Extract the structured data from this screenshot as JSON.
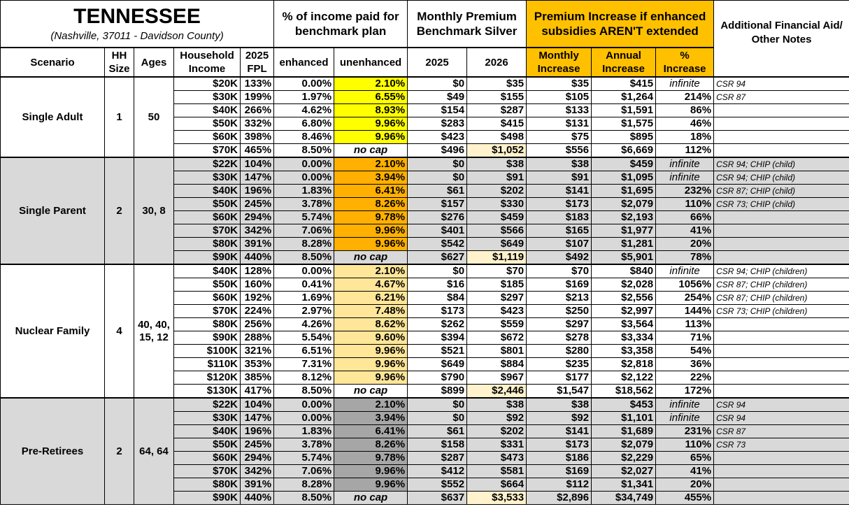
{
  "header": {
    "title": "TENNESSEE",
    "subtitle": "(Nashville, 37011 - Davidson County)",
    "pct_income": "% of income paid for benchmark plan",
    "monthly_premium": "Monthly Premium Benchmark Silver",
    "premium_increase": "Premium Increase if enhanced subsidies AREN'T extended",
    "notes": "Additional Financial Aid/ Other Notes",
    "columns": [
      "Scenario",
      "HH Size",
      "Ages",
      "Household Income",
      "2025 FPL",
      "enhanced",
      "unenhanced",
      "2025",
      "2026",
      "Monthly Increase",
      "Annual Increase",
      "% Increase"
    ]
  },
  "colors": {
    "accent_orange": "#ffc000",
    "single_adult": "#ffff00",
    "single_parent": "#ffb000",
    "nuclear_family": "#ffe699",
    "pre_retirees": "#a6a6a6",
    "band_gray": "#d9d9d9",
    "highlight": "#fff2cc"
  },
  "groups": [
    {
      "scenario": "Single Adult",
      "hh": "1",
      "ages": "50",
      "tone": "y",
      "gray": false,
      "rows": [
        [
          "$20K",
          "133%",
          "0.00%",
          "2.10%",
          "$0",
          "$35",
          "$35",
          "$415",
          "infinite",
          "CSR 94"
        ],
        [
          "$30K",
          "199%",
          "1.97%",
          "6.55%",
          "$49",
          "$155",
          "$105",
          "$1,264",
          "214%",
          "CSR 87"
        ],
        [
          "$40K",
          "266%",
          "4.62%",
          "8.93%",
          "$154",
          "$287",
          "$133",
          "$1,591",
          "86%",
          ""
        ],
        [
          "$50K",
          "332%",
          "6.80%",
          "9.96%",
          "$283",
          "$415",
          "$131",
          "$1,575",
          "46%",
          ""
        ],
        [
          "$60K",
          "398%",
          "8.46%",
          "9.96%",
          "$423",
          "$498",
          "$75",
          "$895",
          "18%",
          ""
        ],
        [
          "$70K",
          "465%",
          "8.50%",
          "no cap",
          "$496",
          "$1,052",
          "$556",
          "$6,669",
          "112%",
          ""
        ]
      ]
    },
    {
      "scenario": "Single Parent",
      "hh": "2",
      "ages": "30, 8",
      "tone": "o",
      "gray": true,
      "rows": [
        [
          "$22K",
          "104%",
          "0.00%",
          "2.10%",
          "$0",
          "$38",
          "$38",
          "$459",
          "infinite",
          "CSR 94; CHIP (child)"
        ],
        [
          "$30K",
          "147%",
          "0.00%",
          "3.94%",
          "$0",
          "$91",
          "$91",
          "$1,095",
          "infinite",
          "CSR 94; CHIP (child)"
        ],
        [
          "$40K",
          "196%",
          "1.83%",
          "6.41%",
          "$61",
          "$202",
          "$141",
          "$1,695",
          "232%",
          "CSR 87; CHIP (child)"
        ],
        [
          "$50K",
          "245%",
          "3.78%",
          "8.26%",
          "$157",
          "$330",
          "$173",
          "$2,079",
          "110%",
          "CSR 73; CHIP (child)"
        ],
        [
          "$60K",
          "294%",
          "5.74%",
          "9.78%",
          "$276",
          "$459",
          "$183",
          "$2,193",
          "66%",
          ""
        ],
        [
          "$70K",
          "342%",
          "7.06%",
          "9.96%",
          "$401",
          "$566",
          "$165",
          "$1,977",
          "41%",
          ""
        ],
        [
          "$80K",
          "391%",
          "8.28%",
          "9.96%",
          "$542",
          "$649",
          "$107",
          "$1,281",
          "20%",
          ""
        ],
        [
          "$90K",
          "440%",
          "8.50%",
          "no cap",
          "$627",
          "$1,119",
          "$492",
          "$5,901",
          "78%",
          ""
        ]
      ]
    },
    {
      "scenario": "Nuclear Family",
      "hh": "4",
      "ages": "40, 40, 15, 12",
      "tone": "l",
      "gray": false,
      "rows": [
        [
          "$40K",
          "128%",
          "0.00%",
          "2.10%",
          "$0",
          "$70",
          "$70",
          "$840",
          "infinite",
          "CSR 94; CHIP (children)"
        ],
        [
          "$50K",
          "160%",
          "0.41%",
          "4.67%",
          "$16",
          "$185",
          "$169",
          "$2,028",
          "1056%",
          "CSR 87; CHIP (children)"
        ],
        [
          "$60K",
          "192%",
          "1.69%",
          "6.21%",
          "$84",
          "$297",
          "$213",
          "$2,556",
          "254%",
          "CSR 87; CHIP (children)"
        ],
        [
          "$70K",
          "224%",
          "2.97%",
          "7.48%",
          "$173",
          "$423",
          "$250",
          "$2,997",
          "144%",
          "CSR 73; CHIP (children)"
        ],
        [
          "$80K",
          "256%",
          "4.26%",
          "8.62%",
          "$262",
          "$559",
          "$297",
          "$3,564",
          "113%",
          ""
        ],
        [
          "$90K",
          "288%",
          "5.54%",
          "9.60%",
          "$394",
          "$672",
          "$278",
          "$3,334",
          "71%",
          ""
        ],
        [
          "$100K",
          "321%",
          "6.51%",
          "9.96%",
          "$521",
          "$801",
          "$280",
          "$3,358",
          "54%",
          ""
        ],
        [
          "$110K",
          "353%",
          "7.31%",
          "9.96%",
          "$649",
          "$884",
          "$235",
          "$2,818",
          "36%",
          ""
        ],
        [
          "$120K",
          "385%",
          "8.12%",
          "9.96%",
          "$790",
          "$967",
          "$177",
          "$2,122",
          "22%",
          ""
        ],
        [
          "$130K",
          "417%",
          "8.50%",
          "no cap",
          "$899",
          "$2,446",
          "$1,547",
          "$18,562",
          "172%",
          ""
        ]
      ]
    },
    {
      "scenario": "Pre-Retirees",
      "hh": "2",
      "ages": "64, 64",
      "tone": "g",
      "gray": true,
      "rows": [
        [
          "$22K",
          "104%",
          "0.00%",
          "2.10%",
          "$0",
          "$38",
          "$38",
          "$453",
          "infinite",
          "CSR 94"
        ],
        [
          "$30K",
          "147%",
          "0.00%",
          "3.94%",
          "$0",
          "$92",
          "$92",
          "$1,101",
          "infinite",
          "CSR 94"
        ],
        [
          "$40K",
          "196%",
          "1.83%",
          "6.41%",
          "$61",
          "$202",
          "$141",
          "$1,689",
          "231%",
          "CSR 87"
        ],
        [
          "$50K",
          "245%",
          "3.78%",
          "8.26%",
          "$158",
          "$331",
          "$173",
          "$2,079",
          "110%",
          "CSR 73"
        ],
        [
          "$60K",
          "294%",
          "5.74%",
          "9.78%",
          "$287",
          "$473",
          "$186",
          "$2,229",
          "65%",
          ""
        ],
        [
          "$70K",
          "342%",
          "7.06%",
          "9.96%",
          "$412",
          "$581",
          "$169",
          "$2,027",
          "41%",
          ""
        ],
        [
          "$80K",
          "391%",
          "8.28%",
          "9.96%",
          "$552",
          "$664",
          "$112",
          "$1,341",
          "20%",
          ""
        ],
        [
          "$90K",
          "440%",
          "8.50%",
          "no cap",
          "$637",
          "$3,533",
          "$2,896",
          "$34,749",
          "455%",
          ""
        ]
      ]
    }
  ]
}
